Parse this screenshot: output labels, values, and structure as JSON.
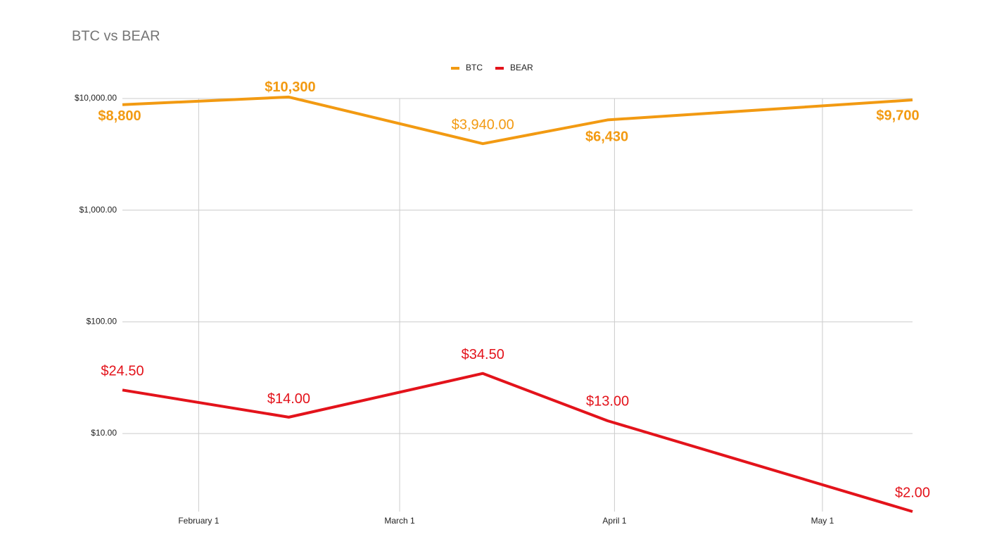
{
  "chart_data": {
    "type": "line",
    "title": "BTC vs BEAR",
    "x": [
      21,
      45,
      73,
      91,
      135
    ],
    "xlim": [
      21,
      135
    ],
    "xticks": [
      {
        "value": 32,
        "label": "February 1"
      },
      {
        "value": 61,
        "label": "March 1"
      },
      {
        "value": 92,
        "label": "April 1"
      },
      {
        "value": 122,
        "label": "May 1"
      }
    ],
    "ylim": [
      2,
      12000
    ],
    "log_scale": true,
    "grid": true,
    "legend": "top",
    "yticks": [
      {
        "value": 10,
        "label": "$10.00"
      },
      {
        "value": 100,
        "label": "$100.00"
      },
      {
        "value": 1000,
        "label": "$1,000.00"
      },
      {
        "value": 10000,
        "label": "$10,000.00"
      }
    ],
    "series": [
      {
        "name": "BTC",
        "color": "#f29a12",
        "values": [
          8800,
          10300,
          3940,
          6430,
          9700
        ],
        "value_labels": [
          "$8,800",
          "$10,300",
          "$3,940.00",
          "$6,430",
          "$9,700"
        ]
      },
      {
        "name": "BEAR",
        "color": "#e3131b",
        "values": [
          24.5,
          14,
          34.5,
          13,
          2
        ],
        "value_labels": [
          "$24.50",
          "$14.00",
          "$34.50",
          "$13.00",
          "$2.00"
        ]
      }
    ]
  }
}
